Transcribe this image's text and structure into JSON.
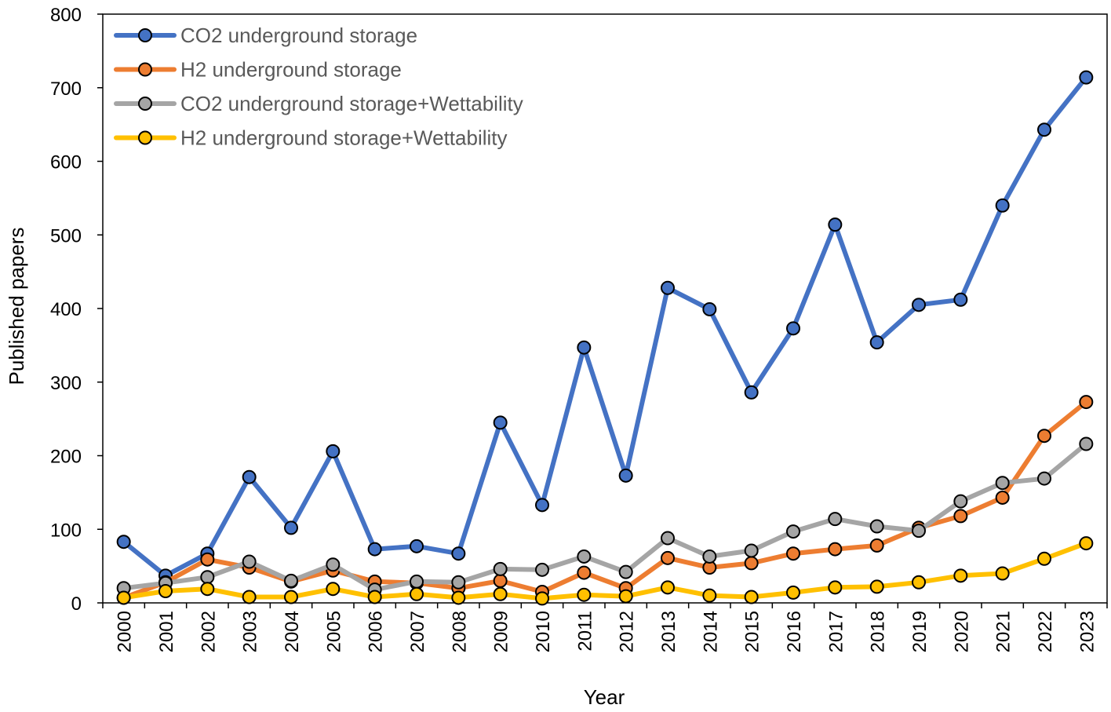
{
  "chart_data": {
    "type": "line",
    "title": "",
    "xlabel": "Year",
    "ylabel": "Published papers",
    "ylim": [
      0,
      800
    ],
    "yticks": [
      0,
      100,
      200,
      300,
      400,
      500,
      600,
      700,
      800
    ],
    "categories": [
      "2000",
      "2001",
      "2002",
      "2003",
      "2004",
      "2005",
      "2006",
      "2007",
      "2008",
      "2009",
      "2010",
      "2011",
      "2012",
      "2013",
      "2014",
      "2015",
      "2016",
      "2017",
      "2018",
      "2019",
      "2020",
      "2021",
      "2022",
      "2023"
    ],
    "grid": false,
    "legend_position": "top-left",
    "series": [
      {
        "name": "CO2 underground storage",
        "color": "#4472C4",
        "values": [
          83,
          37,
          67,
          171,
          102,
          206,
          73,
          77,
          67,
          245,
          133,
          347,
          173,
          428,
          399,
          286,
          373,
          514,
          354,
          405,
          412,
          540,
          643,
          714
        ]
      },
      {
        "name": "H2 underground storage",
        "color": "#ED7D31",
        "values": [
          7,
          28,
          59,
          48,
          29,
          44,
          29,
          27,
          20,
          30,
          15,
          41,
          20,
          61,
          48,
          54,
          67,
          73,
          78,
          102,
          118,
          143,
          227,
          273
        ]
      },
      {
        "name": "CO2 underground storage+Wettability",
        "color": "#A5A5A5",
        "values": [
          20,
          27,
          35,
          56,
          30,
          52,
          18,
          29,
          28,
          46,
          45,
          63,
          42,
          88,
          63,
          71,
          97,
          114,
          104,
          98,
          138,
          163,
          169,
          216
        ]
      },
      {
        "name": "H2 underground storage+Wettability",
        "color": "#FFC000",
        "values": [
          7,
          16,
          19,
          8,
          8,
          19,
          8,
          12,
          7,
          12,
          6,
          11,
          9,
          21,
          10,
          8,
          14,
          21,
          22,
          28,
          37,
          40,
          60,
          81
        ]
      }
    ]
  }
}
